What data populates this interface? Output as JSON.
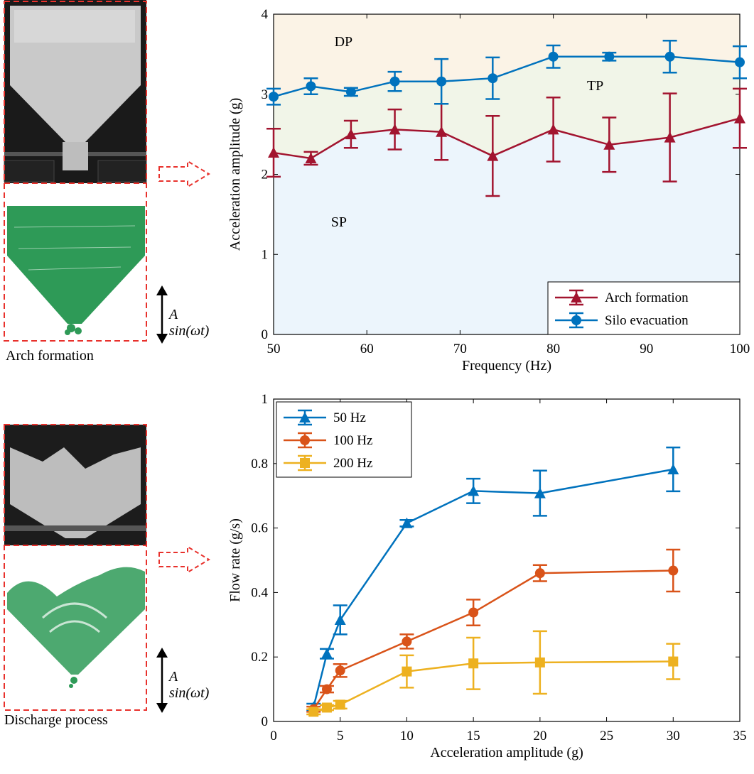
{
  "left_panels": [
    {
      "caption": "Arch formation",
      "equation": "A sin(ωt)"
    },
    {
      "caption": "Discharge process",
      "equation": "A sin(ωt)"
    }
  ],
  "colors": {
    "red_dashed": "#e8312c",
    "particles": "#2e9a57",
    "arch": "#a2142f",
    "evac": "#0072bd",
    "s50": "#0072bd",
    "s100": "#d95319",
    "s200": "#edb120",
    "region_dp": "#fbf3e6",
    "region_tp": "#f1f5e8",
    "region_sp": "#ecf5fc"
  },
  "chart_data": [
    {
      "type": "line",
      "xlabel": "Frequency (Hz)",
      "ylabel": "Acceleration amplitude (g)",
      "xlim": [
        50,
        100
      ],
      "ylim": [
        0,
        4
      ],
      "xticks": [
        50,
        60,
        70,
        80,
        90,
        100
      ],
      "yticks": [
        0,
        1,
        2,
        3,
        4
      ],
      "region_labels": [
        {
          "text": "DP",
          "x": 57.5,
          "y": 3.6
        },
        {
          "text": "TP",
          "x": 84.5,
          "y": 3.05
        },
        {
          "text": "SP",
          "x": 57,
          "y": 1.35
        }
      ],
      "legend_position": "bottom-right",
      "series": [
        {
          "name": "Arch formation",
          "marker": "triangle",
          "color": "#a2142f",
          "x": [
            50,
            54,
            58.3,
            63,
            68,
            73.5,
            80,
            86,
            92.5,
            100
          ],
          "y": [
            2.27,
            2.2,
            2.5,
            2.56,
            2.53,
            2.23,
            2.56,
            2.37,
            2.46,
            2.7
          ],
          "err": [
            0.3,
            0.08,
            0.17,
            0.25,
            0.35,
            0.5,
            0.4,
            0.34,
            0.55,
            0.37
          ]
        },
        {
          "name": "Silo evacuation",
          "marker": "circle",
          "color": "#0072bd",
          "x": [
            50,
            54,
            58.3,
            63,
            68,
            73.5,
            80,
            86,
            92.5,
            100
          ],
          "y": [
            2.97,
            3.1,
            3.03,
            3.16,
            3.16,
            3.2,
            3.47,
            3.47,
            3.47,
            3.4
          ],
          "err": [
            0.1,
            0.1,
            0.05,
            0.12,
            0.28,
            0.26,
            0.14,
            0.05,
            0.2,
            0.2
          ]
        }
      ]
    },
    {
      "type": "line",
      "xlabel": "Acceleration amplitude (g)",
      "ylabel": "Flow rate (g/s)",
      "xlim": [
        0,
        35
      ],
      "ylim": [
        0,
        1
      ],
      "xticks": [
        0,
        5,
        10,
        15,
        20,
        25,
        30,
        35
      ],
      "yticks": [
        0,
        0.2,
        0.4,
        0.6,
        0.8,
        1
      ],
      "ytick_labels": [
        "0",
        "0.2",
        "0.4",
        "0.6",
        "0.8",
        "1"
      ],
      "legend_position": "top-left",
      "series": [
        {
          "name": "50 Hz",
          "marker": "triangle",
          "color": "#0072bd",
          "x": [
            3,
            4,
            5,
            10,
            15,
            20,
            30
          ],
          "y": [
            0.045,
            0.21,
            0.315,
            0.615,
            0.715,
            0.708,
            0.782
          ],
          "err": [
            0.01,
            0.015,
            0.045,
            0.01,
            0.038,
            0.07,
            0.068
          ]
        },
        {
          "name": "100 Hz",
          "marker": "circle",
          "color": "#d95319",
          "x": [
            3,
            4,
            5,
            10,
            15,
            20,
            30
          ],
          "y": [
            0.038,
            0.1,
            0.158,
            0.248,
            0.338,
            0.46,
            0.468
          ],
          "err": [
            0.008,
            0.01,
            0.02,
            0.022,
            0.04,
            0.025,
            0.065
          ]
        },
        {
          "name": "200 Hz",
          "marker": "square",
          "color": "#edb120",
          "x": [
            3,
            4,
            5,
            10,
            15,
            20,
            30
          ],
          "y": [
            0.03,
            0.043,
            0.052,
            0.155,
            0.18,
            0.183,
            0.186
          ],
          "err": [
            0.008,
            0.008,
            0.012,
            0.05,
            0.08,
            0.097,
            0.055
          ]
        }
      ]
    }
  ]
}
